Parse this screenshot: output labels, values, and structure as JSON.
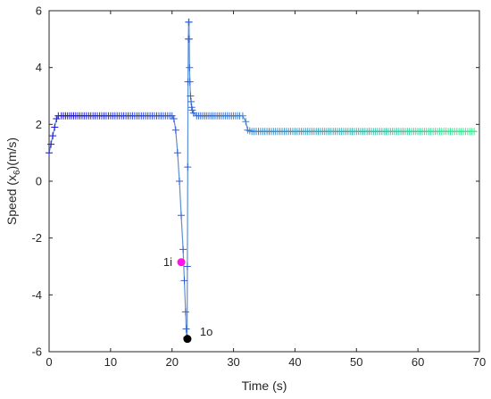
{
  "chart_data": {
    "type": "line",
    "xlabel": "Time (s)",
    "ylabel_main": "Speed (x",
    "ylabel_sub": "6",
    "ylabel_tail": ")(m/s)",
    "xlim": [
      0,
      70
    ],
    "ylim": [
      -6,
      6
    ],
    "xticks": [
      0,
      10,
      20,
      30,
      40,
      50,
      60,
      70
    ],
    "yticks": [
      -6,
      -4,
      -2,
      0,
      2,
      4,
      6
    ],
    "grid": false,
    "colormap_start": "#1f0fd6",
    "colormap_mid": "#3b82d0",
    "colormap_end": "#33f58a",
    "line_color": "#5b8fd6",
    "series": [
      {
        "x": [
          0,
          0.3,
          0.6,
          0.9,
          1.2,
          1.5,
          2,
          5,
          10,
          15,
          20,
          20.3,
          20.6,
          20.9,
          21.2,
          21.5,
          21.8,
          22.0,
          22.2,
          22.3,
          22.4,
          22.45,
          22.5,
          22.55,
          22.6,
          22.65,
          22.7,
          22.75,
          22.8,
          22.85,
          22.9,
          23.0,
          23.1,
          23.2,
          23.3,
          23.5,
          24,
          25,
          28,
          31,
          31.5,
          32,
          32.3,
          33,
          40,
          50,
          60,
          69.5
        ],
        "y": [
          1.0,
          1.3,
          1.6,
          1.9,
          2.2,
          2.3,
          2.3,
          2.3,
          2.3,
          2.3,
          2.3,
          2.2,
          1.8,
          1.0,
          0.0,
          -1.2,
          -2.4,
          -3.5,
          -4.6,
          -5.2,
          -5.5,
          -5.55,
          -3.0,
          0.5,
          3.5,
          5.0,
          5.6,
          5.6,
          5.0,
          4.0,
          3.5,
          3.0,
          2.8,
          2.6,
          2.5,
          2.4,
          2.3,
          2.3,
          2.3,
          2.3,
          2.3,
          2.1,
          1.8,
          1.75,
          1.75,
          1.75,
          1.75,
          1.75
        ]
      }
    ],
    "annotations": [
      {
        "label": "1i",
        "x": 21.5,
        "y": -2.85,
        "color": "#ff14e6"
      },
      {
        "label": "1o",
        "x": 22.5,
        "y": -5.55,
        "color": "#000000"
      }
    ]
  }
}
